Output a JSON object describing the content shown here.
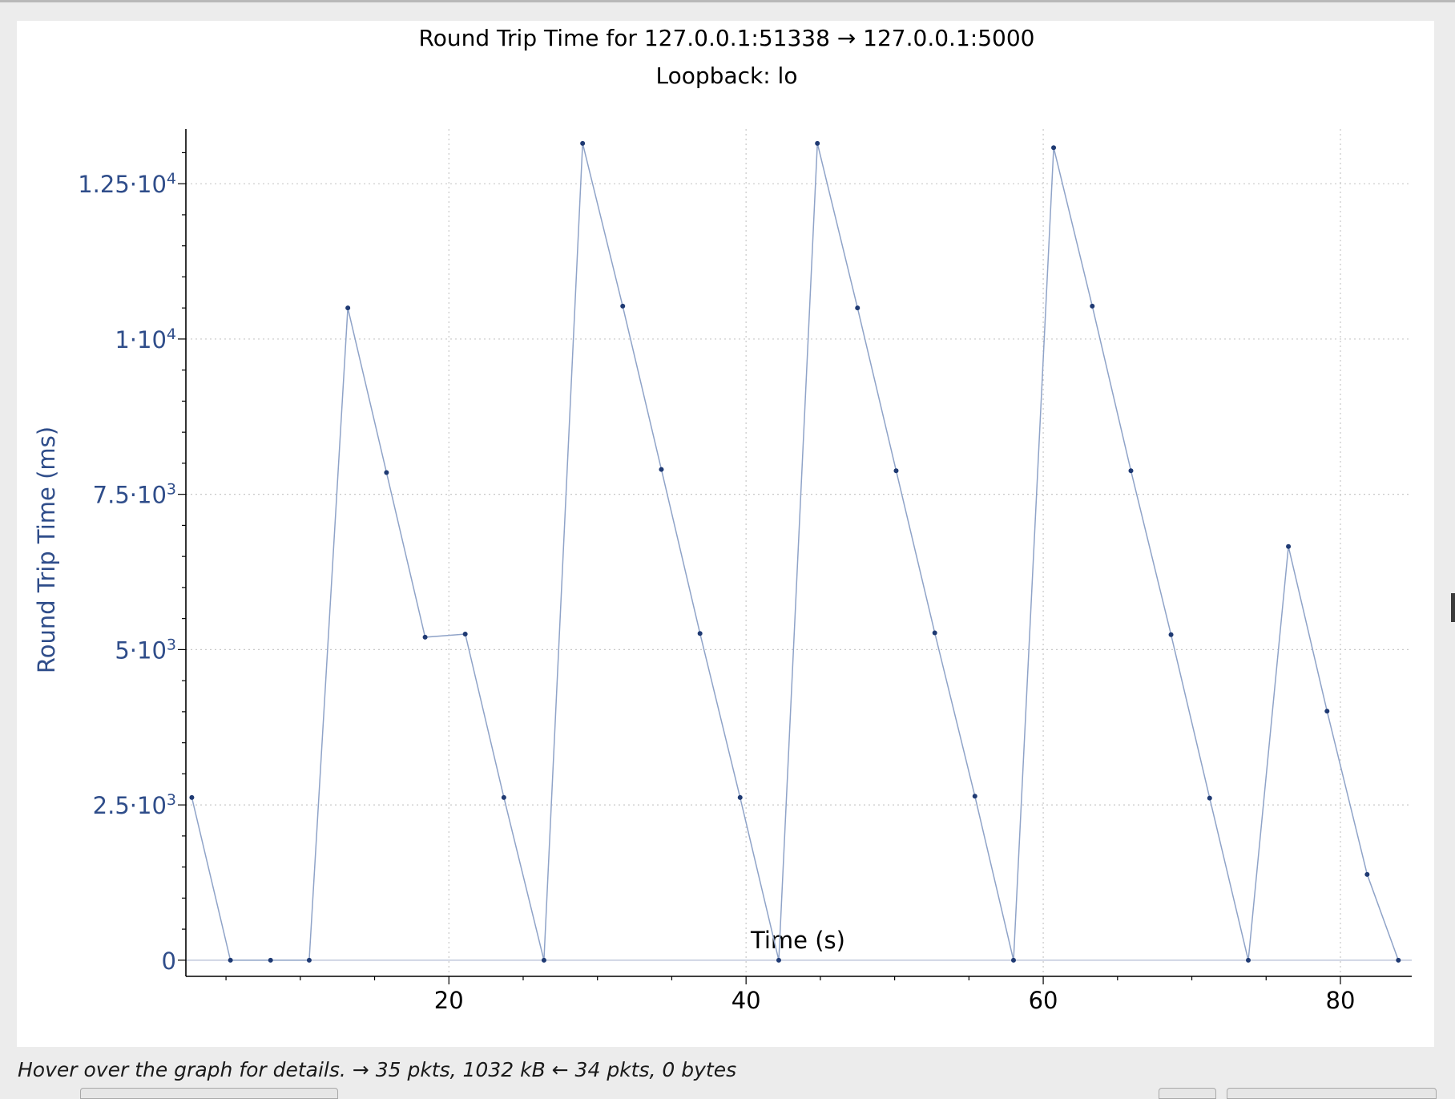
{
  "chart_data": {
    "type": "line",
    "title": "Round Trip Time for 127.0.0.1:51338 → 127.0.0.1:5000",
    "subtitle": "Loopback: lo",
    "xlabel": "Time (s)",
    "ylabel": "Round Trip Time (ms)",
    "xlim": [
      2.3,
      84.8
    ],
    "ylim": [
      -260,
      13380
    ],
    "x_ticks": [
      20,
      40,
      60,
      80
    ],
    "x_tick_labels": [
      "20",
      "40",
      "60",
      "80"
    ],
    "y_ticks": [
      0,
      2500,
      5000,
      7500,
      10000,
      12500
    ],
    "y_tick_labels": [
      {
        "mant": "0",
        "exp": ""
      },
      {
        "mant": "2.5·10",
        "exp": "3"
      },
      {
        "mant": "5·10",
        "exp": "3"
      },
      {
        "mant": "7.5·10",
        "exp": "3"
      },
      {
        "mant": "1·10",
        "exp": "4"
      },
      {
        "mant": "1.25·10",
        "exp": "4"
      }
    ],
    "grid": true,
    "colors": {
      "series": "#8fa3c8",
      "marker": "#1f3a73",
      "axis_label": "#2f4d8a",
      "grid": "#c8c8c8"
    },
    "series": [
      {
        "x": [
          2.7,
          5.3,
          8.0,
          10.6,
          13.2,
          15.8,
          18.4,
          21.1,
          23.7,
          26.4,
          29.0,
          31.7,
          34.3,
          36.9,
          39.6,
          42.2,
          44.8,
          47.5,
          50.1,
          52.7,
          55.4,
          58.0,
          60.7,
          63.3,
          65.9,
          68.6,
          71.2,
          73.8,
          76.5,
          79.1,
          81.8,
          83.9
        ],
        "y": [
          2620,
          0,
          0,
          0,
          10500,
          7850,
          5200,
          5250,
          2620,
          0,
          13150,
          10530,
          7900,
          5260,
          2620,
          0,
          13150,
          10500,
          7880,
          5270,
          2640,
          0,
          13080,
          10530,
          7880,
          5240,
          2610,
          0,
          6660,
          4010,
          1380,
          0
        ]
      }
    ]
  },
  "status_bar": {
    "text": "Hover over the graph for details. → 35 pkts, 1032 kB ← 34 pkts, 0 bytes"
  }
}
